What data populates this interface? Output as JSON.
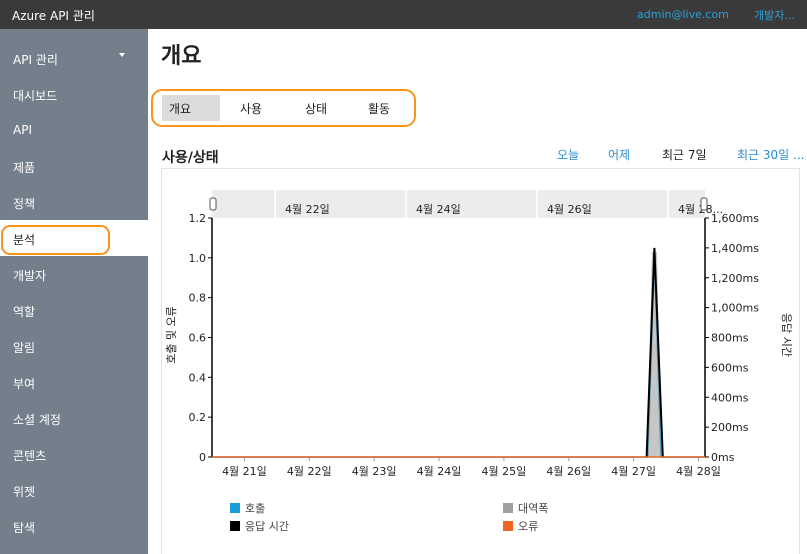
{
  "header": {
    "app_title": "Azure API 관리",
    "user_email": "admin@live.com",
    "developer_link": "개발자..."
  },
  "sidebar": {
    "items": [
      {
        "label": "API 관리",
        "expandable": true
      },
      {
        "label": "대시보드"
      },
      {
        "label": "API"
      },
      {
        "label": "제품"
      },
      {
        "label": "정책"
      },
      {
        "label": "분석",
        "active": true
      },
      {
        "label": "개발자"
      },
      {
        "label": "역할"
      },
      {
        "label": "알림"
      },
      {
        "label": "부여"
      },
      {
        "label": "소셜 계정"
      },
      {
        "label": "콘텐츠"
      },
      {
        "label": "위젯"
      },
      {
        "label": "탐색"
      }
    ]
  },
  "main": {
    "title": "개요",
    "tabs": [
      {
        "label": "개요",
        "active": true
      },
      {
        "label": "사용"
      },
      {
        "label": "상태"
      },
      {
        "label": "활동"
      }
    ],
    "section_title": "사용/상태",
    "time_ranges": [
      {
        "label": "오늘"
      },
      {
        "label": "어제"
      },
      {
        "label": "최근 7일",
        "selected": true
      },
      {
        "label": "최근 30일 ..."
      }
    ]
  },
  "colors": {
    "accent_highlight": "#f7941d",
    "link": "#2b8ccc",
    "sidebar_bg": "#737f8b",
    "topbar_bg": "#3a3a3a"
  },
  "chart_data": {
    "type": "line",
    "navigator_labels": [
      "4월 22일",
      "4월 24일",
      "4월 26일",
      "4월 28..."
    ],
    "x_ticks": [
      "4월 21일",
      "4월 22일",
      "4월 23일",
      "4월 24일",
      "4월 25일",
      "4월 26일",
      "4월 27일",
      "4월 28일"
    ],
    "y_left": {
      "label": "호출 및 오류",
      "ticks": [
        "0",
        "0.2",
        "0.4",
        "0.6",
        "0.8",
        "1.0",
        "1.2"
      ],
      "range": [
        0,
        1.2
      ]
    },
    "y_right": {
      "label": "응답 시간",
      "ticks": [
        "0ms",
        "200ms",
        "400ms",
        "600ms",
        "800ms",
        "1,000ms",
        "1,200ms",
        "1,400ms",
        "1,600ms"
      ],
      "range": [
        0,
        1600
      ]
    },
    "x_range": [
      0,
      7.6
    ],
    "series": [
      {
        "name": "호출",
        "color": "#1a9ed9",
        "axis": "left",
        "points": [
          [
            0,
            0
          ],
          [
            6.72,
            0
          ],
          [
            6.82,
            1.0
          ],
          [
            6.92,
            0
          ],
          [
            7.6,
            0
          ]
        ]
      },
      {
        "name": "대역폭",
        "color": "#a0a0a0",
        "axis": "left",
        "type": "area",
        "points": [
          [
            6.72,
            0
          ],
          [
            6.78,
            1.03
          ],
          [
            6.86,
            1.03
          ],
          [
            6.92,
            0
          ]
        ]
      },
      {
        "name": "응답 시간",
        "color": "#000000",
        "axis": "right",
        "points": [
          [
            6.7,
            0
          ],
          [
            6.82,
            1400
          ],
          [
            6.95,
            0
          ]
        ]
      },
      {
        "name": "오류",
        "color": "#f26522",
        "axis": "left",
        "points": [
          [
            0,
            0
          ],
          [
            7.6,
            0
          ]
        ]
      }
    ],
    "legend_position": "bottom"
  }
}
